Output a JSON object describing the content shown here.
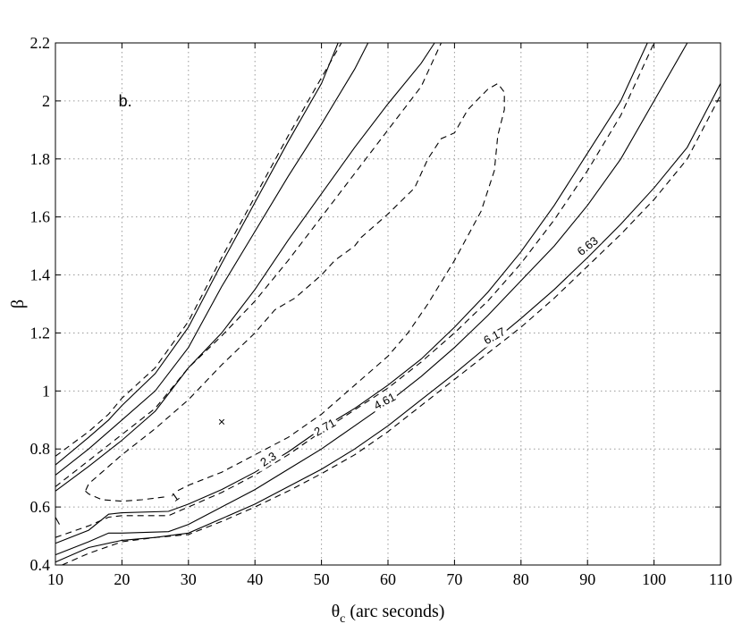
{
  "chart_data": {
    "type": "contour",
    "panel_label": "b.",
    "xlabel_main": "θ",
    "xlabel_sub": "c",
    "xlabel_rest": " (arc seconds)",
    "ylabel": "β",
    "xlim": [
      10,
      110
    ],
    "ylim": [
      0.4,
      2.2
    ],
    "xticks": [
      10,
      20,
      30,
      40,
      50,
      60,
      70,
      80,
      90,
      100,
      110
    ],
    "yticks": [
      0.4,
      0.6,
      0.8,
      1,
      1.2,
      1.4,
      1.6,
      1.8,
      2,
      2.2
    ],
    "grid": true,
    "best_fit": {
      "x": 35,
      "y": 0.895,
      "marker": "×"
    },
    "contour_labels": [
      {
        "text": "1",
        "x": 28,
        "y": 0.635,
        "rot": -35
      },
      {
        "text": "2.3",
        "x": 42,
        "y": 0.765,
        "rot": -33
      },
      {
        "text": "2.71",
        "x": 50.5,
        "y": 0.875,
        "rot": -30
      },
      {
        "text": "4.61",
        "x": 59.5,
        "y": 0.965,
        "rot": -28
      },
      {
        "text": "6.17",
        "x": 76,
        "y": 1.19,
        "rot": -28
      },
      {
        "text": "6.63",
        "x": 90,
        "y": 1.5,
        "rot": -38
      }
    ],
    "contours": [
      {
        "level": "6.63",
        "style": "dashed",
        "branches": [
          [
            [
              10,
              0.775
            ],
            [
              15,
              0.86
            ],
            [
              18,
              0.92
            ],
            [
              20,
              0.975
            ],
            [
              25,
              1.08
            ],
            [
              30,
              1.24
            ],
            [
              35,
              1.46
            ],
            [
              40,
              1.67
            ],
            [
              45,
              1.88
            ],
            [
              50,
              2.08
            ],
            [
              53,
              2.2
            ]
          ],
          [
            [
              11,
              0.4
            ],
            [
              15,
              0.44
            ],
            [
              20,
              0.48
            ],
            [
              25,
              0.495
            ],
            [
              30,
              0.505
            ],
            [
              35,
              0.55
            ],
            [
              40,
              0.6
            ],
            [
              45,
              0.655
            ],
            [
              50,
              0.715
            ],
            [
              55,
              0.78
            ],
            [
              60,
              0.86
            ],
            [
              65,
              0.95
            ],
            [
              70,
              1.04
            ],
            [
              75,
              1.13
            ],
            [
              80,
              1.22
            ],
            [
              85,
              1.32
            ],
            [
              90,
              1.43
            ],
            [
              95,
              1.54
            ],
            [
              100,
              1.66
            ],
            [
              105,
              1.8
            ],
            [
              110,
              2.02
            ]
          ]
        ]
      },
      {
        "level": "6.17",
        "style": "solid",
        "branches": [
          [
            [
              10,
              0.745
            ],
            [
              15,
              0.84
            ],
            [
              18,
              0.9
            ],
            [
              20,
              0.95
            ],
            [
              25,
              1.06
            ],
            [
              30,
              1.22
            ],
            [
              35,
              1.44
            ],
            [
              40,
              1.65
            ],
            [
              45,
              1.86
            ],
            [
              50,
              2.06
            ],
            [
              52.5,
              2.2
            ]
          ],
          [
            [
              10,
              0.41
            ],
            [
              15,
              0.46
            ],
            [
              20,
              0.485
            ],
            [
              25,
              0.495
            ],
            [
              30,
              0.51
            ],
            [
              35,
              0.56
            ],
            [
              40,
              0.61
            ],
            [
              45,
              0.67
            ],
            [
              50,
              0.73
            ],
            [
              55,
              0.8
            ],
            [
              60,
              0.88
            ],
            [
              65,
              0.97
            ],
            [
              70,
              1.06
            ],
            [
              75,
              1.155
            ],
            [
              80,
              1.25
            ],
            [
              85,
              1.35
            ],
            [
              90,
              1.46
            ],
            [
              95,
              1.575
            ],
            [
              100,
              1.7
            ],
            [
              105,
              1.84
            ],
            [
              110,
              2.06
            ]
          ]
        ]
      },
      {
        "level": "4.61",
        "style": "solid",
        "branches": [
          [
            [
              10,
              0.71
            ],
            [
              15,
              0.8
            ],
            [
              20,
              0.9
            ],
            [
              25,
              1.0
            ],
            [
              30,
              1.15
            ],
            [
              35,
              1.36
            ],
            [
              40,
              1.55
            ],
            [
              45,
              1.74
            ],
            [
              50,
              1.92
            ],
            [
              55,
              2.11
            ],
            [
              57,
              2.2
            ]
          ],
          [
            [
              10,
              0.435
            ],
            [
              15,
              0.48
            ],
            [
              18,
              0.51
            ],
            [
              20,
              0.51
            ],
            [
              27,
              0.515
            ],
            [
              30,
              0.54
            ],
            [
              35,
              0.6
            ],
            [
              40,
              0.66
            ],
            [
              45,
              0.73
            ],
            [
              50,
              0.8
            ],
            [
              55,
              0.88
            ],
            [
              60,
              0.96
            ],
            [
              65,
              1.05
            ],
            [
              70,
              1.15
            ],
            [
              75,
              1.26
            ],
            [
              80,
              1.38
            ],
            [
              85,
              1.5
            ],
            [
              90,
              1.64
            ],
            [
              95,
              1.8
            ],
            [
              100,
              2.0
            ],
            [
              105,
              2.2
            ]
          ]
        ]
      },
      {
        "level": "2.71",
        "style": "solid",
        "branches": [
          [
            [
              10,
              0.655
            ],
            [
              15,
              0.74
            ],
            [
              20,
              0.83
            ],
            [
              25,
              0.93
            ],
            [
              30,
              1.08
            ],
            [
              35,
              1.2
            ],
            [
              40,
              1.35
            ],
            [
              45,
              1.52
            ],
            [
              50,
              1.68
            ],
            [
              55,
              1.84
            ],
            [
              60,
              1.99
            ],
            [
              65,
              2.13
            ],
            [
              67,
              2.2
            ]
          ],
          [
            [
              10,
              0.475
            ],
            [
              15,
              0.52
            ],
            [
              18,
              0.575
            ],
            [
              20,
              0.58
            ],
            [
              27,
              0.585
            ],
            [
              30,
              0.61
            ],
            [
              35,
              0.66
            ],
            [
              40,
              0.72
            ],
            [
              45,
              0.79
            ],
            [
              50,
              0.87
            ],
            [
              55,
              0.94
            ],
            [
              60,
              1.02
            ],
            [
              65,
              1.11
            ],
            [
              70,
              1.22
            ],
            [
              75,
              1.34
            ],
            [
              80,
              1.48
            ],
            [
              85,
              1.64
            ],
            [
              90,
              1.82
            ],
            [
              95,
              2.0
            ],
            [
              99,
              2.2
            ]
          ]
        ]
      },
      {
        "level": "2.3",
        "style": "dashed",
        "branches": [
          [
            [
              10,
              0.67
            ],
            [
              15,
              0.76
            ],
            [
              20,
              0.85
            ],
            [
              25,
              0.94
            ],
            [
              30,
              1.08
            ],
            [
              35,
              1.19
            ],
            [
              40,
              1.31
            ],
            [
              45,
              1.45
            ],
            [
              50,
              1.6
            ],
            [
              55,
              1.75
            ],
            [
              60,
              1.9
            ],
            [
              65,
              2.05
            ],
            [
              68,
              2.2
            ]
          ],
          [
            [
              10,
              0.495
            ],
            [
              15,
              0.535
            ],
            [
              18,
              0.565
            ],
            [
              20,
              0.57
            ],
            [
              27,
              0.57
            ],
            [
              30,
              0.6
            ],
            [
              35,
              0.65
            ],
            [
              40,
              0.71
            ],
            [
              45,
              0.78
            ],
            [
              50,
              0.86
            ],
            [
              55,
              0.935
            ],
            [
              60,
              1.01
            ],
            [
              65,
              1.1
            ],
            [
              70,
              1.2
            ],
            [
              75,
              1.31
            ],
            [
              80,
              1.44
            ],
            [
              85,
              1.59
            ],
            [
              90,
              1.76
            ],
            [
              95,
              1.95
            ],
            [
              100,
              2.2
            ]
          ]
        ]
      },
      {
        "level": "1",
        "style": "dashed",
        "closed": true,
        "branches": [
          [
            [
              14.5,
              0.655
            ],
            [
              15,
              0.645
            ],
            [
              17,
              0.625
            ],
            [
              20,
              0.62
            ],
            [
              23,
              0.625
            ],
            [
              26.5,
              0.635
            ],
            [
              30,
              0.675
            ],
            [
              35,
              0.72
            ],
            [
              40,
              0.78
            ],
            [
              45,
              0.84
            ],
            [
              50,
              0.92
            ],
            [
              55,
              1.02
            ],
            [
              60,
              1.12
            ],
            [
              63,
              1.2
            ],
            [
              66,
              1.3
            ],
            [
              70,
              1.45
            ],
            [
              74,
              1.62
            ],
            [
              76,
              1.76
            ],
            [
              76.5,
              1.88
            ],
            [
              77.5,
              1.97
            ],
            [
              77.5,
              2.03
            ],
            [
              76.5,
              2.06
            ],
            [
              75,
              2.04
            ],
            [
              72,
              1.97
            ],
            [
              70,
              1.89
            ],
            [
              68,
              1.87
            ],
            [
              66,
              1.8
            ],
            [
              64,
              1.7
            ],
            [
              60,
              1.61
            ],
            [
              56,
              1.53
            ],
            [
              55,
              1.5
            ],
            [
              52,
              1.45
            ],
            [
              50,
              1.4
            ],
            [
              46,
              1.32
            ],
            [
              43,
              1.28
            ],
            [
              40,
              1.2
            ],
            [
              35,
              1.09
            ],
            [
              30,
              0.97
            ],
            [
              25,
              0.87
            ],
            [
              20,
              0.78
            ],
            [
              17,
              0.72
            ],
            [
              15,
              0.68
            ],
            [
              14.5,
              0.655
            ]
          ]
        ]
      },
      {
        "level": "edge",
        "style": "solid",
        "branches": [
          [
            [
              10,
              0.565
            ],
            [
              10.6,
              0.54
            ]
          ]
        ]
      }
    ]
  }
}
